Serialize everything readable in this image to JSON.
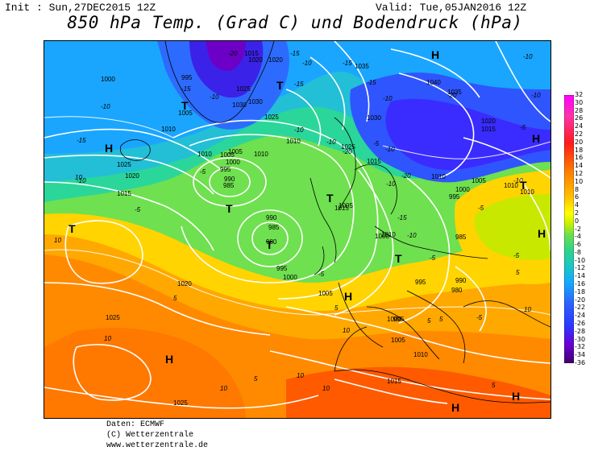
{
  "header": {
    "init": "Init : Sun,27DEC2015 12Z",
    "valid": "Valid: Tue,05JAN2016 12Z",
    "title": "850 hPa Temp. (Grad C) und Bodendruck (hPa)"
  },
  "colorbar": {
    "labels": [
      "32",
      "30",
      "28",
      "26",
      "24",
      "22",
      "20",
      "18",
      "16",
      "14",
      "12",
      "10",
      "8",
      "6",
      "4",
      "2",
      "0",
      "-2",
      "-4",
      "-6",
      "-8",
      "-10",
      "-12",
      "-14",
      "-16",
      "-18",
      "-20",
      "-22",
      "-24",
      "-26",
      "-28",
      "-30",
      "-32",
      "-34",
      "-36"
    ],
    "colors": {
      "very_warm": "#ff00ff",
      "warm": "#ff6a00",
      "mild": "#ffd700",
      "neutral": "#6be04a",
      "cool": "#2fd38a",
      "cold": "#14a9ff",
      "very_cold": "#2b38ff",
      "extreme_cold": "#7a00c8"
    }
  },
  "map": {
    "pressure_labels": [
      "1000",
      "1015",
      "1020",
      "1020",
      "995",
      "1005",
      "1010",
      "1025",
      "1030",
      "1030",
      "1025",
      "1035",
      "1040",
      "1035",
      "1020",
      "1015",
      "1030",
      "1025",
      "1015",
      "1010",
      "1010",
      "1005",
      "990",
      "995",
      "985",
      "1025",
      "1020",
      "1015",
      "1010",
      "1005",
      "1000",
      "990",
      "985",
      "980",
      "995",
      "1000",
      "1010",
      "1000",
      "995",
      "1010",
      "1015",
      "1005",
      "1000",
      "995",
      "990",
      "985",
      "980",
      "1010",
      "1010",
      "1005",
      "1025",
      "1020",
      "1005",
      "1000",
      "995",
      "1005",
      "1010",
      "1015",
      "1025"
    ],
    "temp_labels": [
      "-20",
      "-15",
      "-15",
      "-10",
      "-15",
      "-10",
      "-20",
      "-15",
      "-10",
      "-10",
      "-15",
      "-10",
      "-5",
      "-10",
      "-15",
      "-10",
      "-5",
      "-10",
      "-5",
      "-10",
      "-5",
      "-20",
      "-10",
      "-20",
      "-15",
      "-10",
      "-5",
      "-5",
      "-10",
      "-5",
      "-10",
      "-5",
      "-5",
      "5",
      "5",
      "5",
      "10",
      "10",
      "10",
      "10",
      "10",
      "10",
      "5",
      "10",
      "10",
      "5",
      "5",
      "5"
    ],
    "high_label": "H",
    "low_label": "T"
  },
  "footer": {
    "line1": "Daten: ECMWF",
    "line2": "(C) Wetterzentrale",
    "line3": "www.wetterzentrale.de"
  }
}
